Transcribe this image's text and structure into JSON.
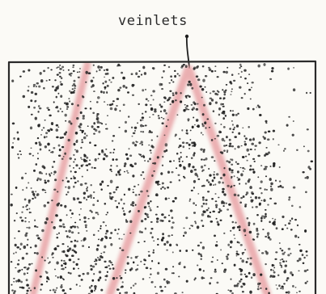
{
  "label": "veinlets",
  "colors": {
    "paper": "#fbfaf6",
    "ink": "#222222",
    "vein": "#e8a3a6"
  }
}
